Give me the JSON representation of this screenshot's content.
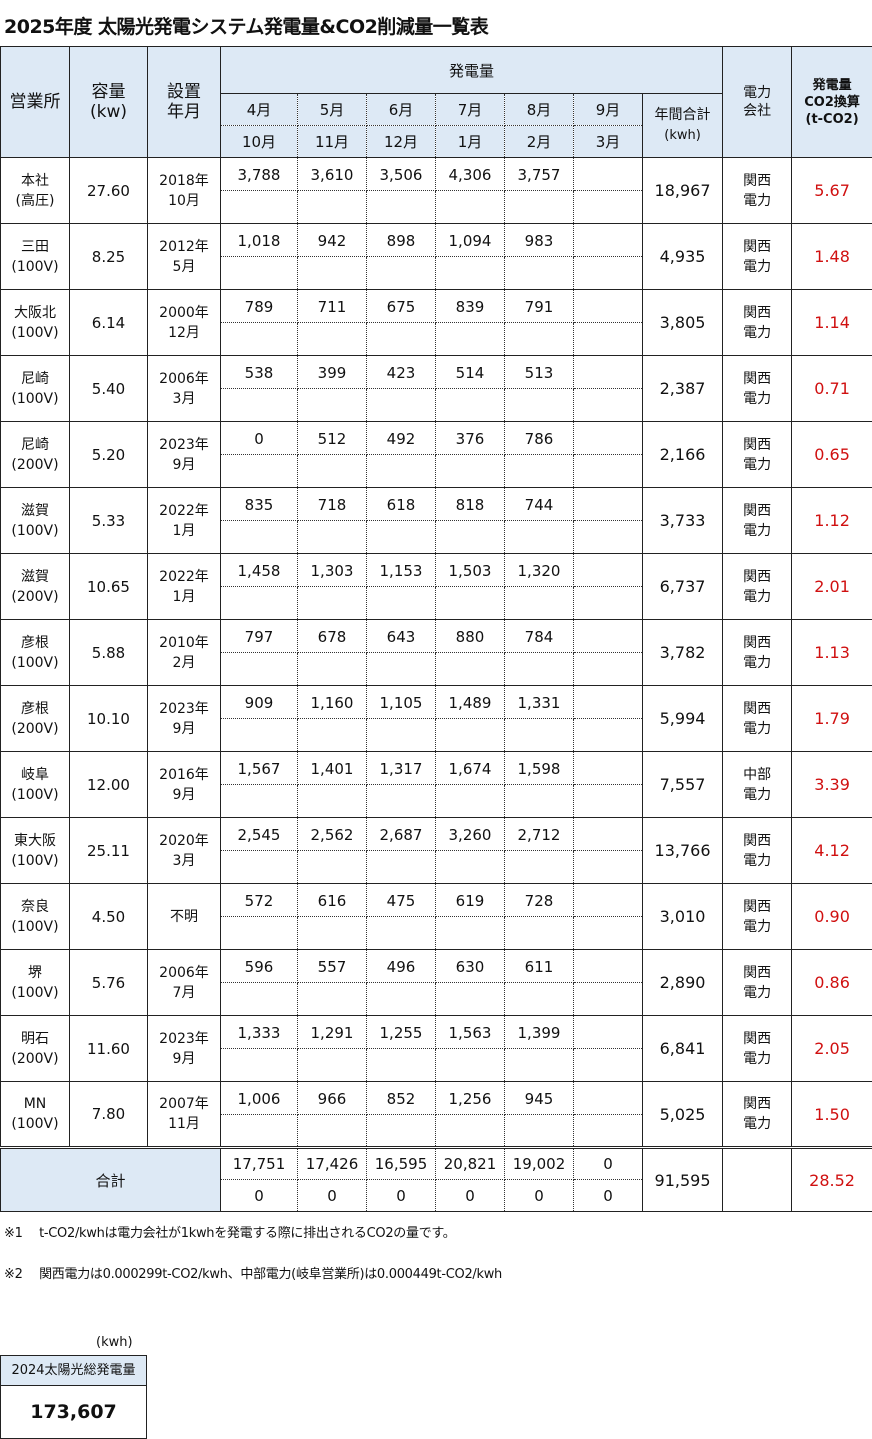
{
  "title": "2025年度 太陽光発電システム発電量&CO2削減量一覧表",
  "header": {
    "office": "営業所",
    "capacity": [
      "容量",
      "(kw)"
    ],
    "installed": [
      "設置",
      "年月"
    ],
    "generation": "発電量",
    "months_top": [
      "4月",
      "5月",
      "6月",
      "7月",
      "8月",
      "9月"
    ],
    "months_bottom": [
      "10月",
      "11月",
      "12月",
      "1月",
      "2月",
      "3月"
    ],
    "annual": [
      "年間合計",
      "(kwh)"
    ],
    "company": [
      "電力",
      "会社"
    ],
    "co2": [
      "発電量",
      "CO2換算",
      "(t-CO2)"
    ]
  },
  "rows": [
    {
      "name": [
        "本社",
        "(高圧)"
      ],
      "cap": "27.60",
      "inst": [
        "2018年",
        "10月"
      ],
      "m": [
        "3,788",
        "3,610",
        "3,506",
        "4,306",
        "3,757",
        ""
      ],
      "total": "18,967",
      "co": [
        "関西",
        "電力"
      ],
      "co2": "5.67"
    },
    {
      "name": [
        "三田",
        "(100V)"
      ],
      "cap": "8.25",
      "inst": [
        "2012年",
        "5月"
      ],
      "m": [
        "1,018",
        "942",
        "898",
        "1,094",
        "983",
        ""
      ],
      "total": "4,935",
      "co": [
        "関西",
        "電力"
      ],
      "co2": "1.48"
    },
    {
      "name": [
        "大阪北",
        "(100V)"
      ],
      "cap": "6.14",
      "inst": [
        "2000年",
        "12月"
      ],
      "m": [
        "789",
        "711",
        "675",
        "839",
        "791",
        ""
      ],
      "total": "3,805",
      "co": [
        "関西",
        "電力"
      ],
      "co2": "1.14"
    },
    {
      "name": [
        "尼崎",
        "(100V)"
      ],
      "cap": "5.40",
      "inst": [
        "2006年",
        "3月"
      ],
      "m": [
        "538",
        "399",
        "423",
        "514",
        "513",
        ""
      ],
      "total": "2,387",
      "co": [
        "関西",
        "電力"
      ],
      "co2": "0.71"
    },
    {
      "name": [
        "尼崎",
        "(200V)"
      ],
      "cap": "5.20",
      "inst": [
        "2023年",
        "9月"
      ],
      "m": [
        "0",
        "512",
        "492",
        "376",
        "786",
        ""
      ],
      "total": "2,166",
      "co": [
        "関西",
        "電力"
      ],
      "co2": "0.65"
    },
    {
      "name": [
        "滋賀",
        "(100V)"
      ],
      "cap": "5.33",
      "inst": [
        "2022年",
        "1月"
      ],
      "m": [
        "835",
        "718",
        "618",
        "818",
        "744",
        ""
      ],
      "total": "3,733",
      "co": [
        "関西",
        "電力"
      ],
      "co2": "1.12"
    },
    {
      "name": [
        "滋賀",
        "(200V)"
      ],
      "cap": "10.65",
      "inst": [
        "2022年",
        "1月"
      ],
      "m": [
        "1,458",
        "1,303",
        "1,153",
        "1,503",
        "1,320",
        ""
      ],
      "total": "6,737",
      "co": [
        "関西",
        "電力"
      ],
      "co2": "2.01"
    },
    {
      "name": [
        "彦根",
        "(100V)"
      ],
      "cap": "5.88",
      "inst": [
        "2010年",
        "2月"
      ],
      "m": [
        "797",
        "678",
        "643",
        "880",
        "784",
        ""
      ],
      "total": "3,782",
      "co": [
        "関西",
        "電力"
      ],
      "co2": "1.13"
    },
    {
      "name": [
        "彦根",
        "(200V)"
      ],
      "cap": "10.10",
      "inst": [
        "2023年",
        "9月"
      ],
      "m": [
        "909",
        "1,160",
        "1,105",
        "1,489",
        "1,331",
        ""
      ],
      "total": "5,994",
      "co": [
        "関西",
        "電力"
      ],
      "co2": "1.79"
    },
    {
      "name": [
        "岐阜",
        "(100V)"
      ],
      "cap": "12.00",
      "inst": [
        "2016年",
        "9月"
      ],
      "m": [
        "1,567",
        "1,401",
        "1,317",
        "1,674",
        "1,598",
        ""
      ],
      "total": "7,557",
      "co": [
        "中部",
        "電力"
      ],
      "co2": "3.39"
    },
    {
      "name": [
        "東大阪",
        "(100V)"
      ],
      "cap": "25.11",
      "inst": [
        "2020年",
        "3月"
      ],
      "m": [
        "2,545",
        "2,562",
        "2,687",
        "3,260",
        "2,712",
        ""
      ],
      "total": "13,766",
      "co": [
        "関西",
        "電力"
      ],
      "co2": "4.12"
    },
    {
      "name": [
        "奈良",
        "(100V)"
      ],
      "cap": "4.50",
      "inst": [
        "不明",
        ""
      ],
      "m": [
        "572",
        "616",
        "475",
        "619",
        "728",
        ""
      ],
      "total": "3,010",
      "co": [
        "関西",
        "電力"
      ],
      "co2": "0.90"
    },
    {
      "name": [
        "堺",
        "(100V)"
      ],
      "cap": "5.76",
      "inst": [
        "2006年",
        "7月"
      ],
      "m": [
        "596",
        "557",
        "496",
        "630",
        "611",
        ""
      ],
      "total": "2,890",
      "co": [
        "関西",
        "電力"
      ],
      "co2": "0.86"
    },
    {
      "name": [
        "明石",
        "(200V)"
      ],
      "cap": "11.60",
      "inst": [
        "2023年",
        "9月"
      ],
      "m": [
        "1,333",
        "1,291",
        "1,255",
        "1,563",
        "1,399",
        ""
      ],
      "total": "6,841",
      "co": [
        "関西",
        "電力"
      ],
      "co2": "2.05"
    },
    {
      "name": [
        "MN",
        "(100V)"
      ],
      "cap": "7.80",
      "inst": [
        "2007年",
        "11月"
      ],
      "m": [
        "1,006",
        "966",
        "852",
        "1,256",
        "945",
        ""
      ],
      "total": "5,025",
      "co": [
        "関西",
        "電力"
      ],
      "co2": "1.50"
    }
  ],
  "totals": {
    "label": "合計",
    "top": [
      "17,751",
      "17,426",
      "16,595",
      "20,821",
      "19,002",
      "0"
    ],
    "bottom": [
      "0",
      "0",
      "0",
      "0",
      "0",
      "0"
    ],
    "annual": "91,595",
    "co2": "28.52"
  },
  "notes": [
    "※1　 t-CO2/kwhは電力会社が1kwhを発電する際に排出されるCO2の量です。",
    "※2　 関西電力は0.000299t-CO2/kwh、中部電力(岐阜営業所)は0.000449t-CO2/kwh"
  ],
  "summary": {
    "unit": "(kwh)",
    "label": "2024太陽光総発電量",
    "value": "173,607"
  },
  "colors": {
    "header_bg": "#dde9f5",
    "co2_text": "#d01010"
  }
}
